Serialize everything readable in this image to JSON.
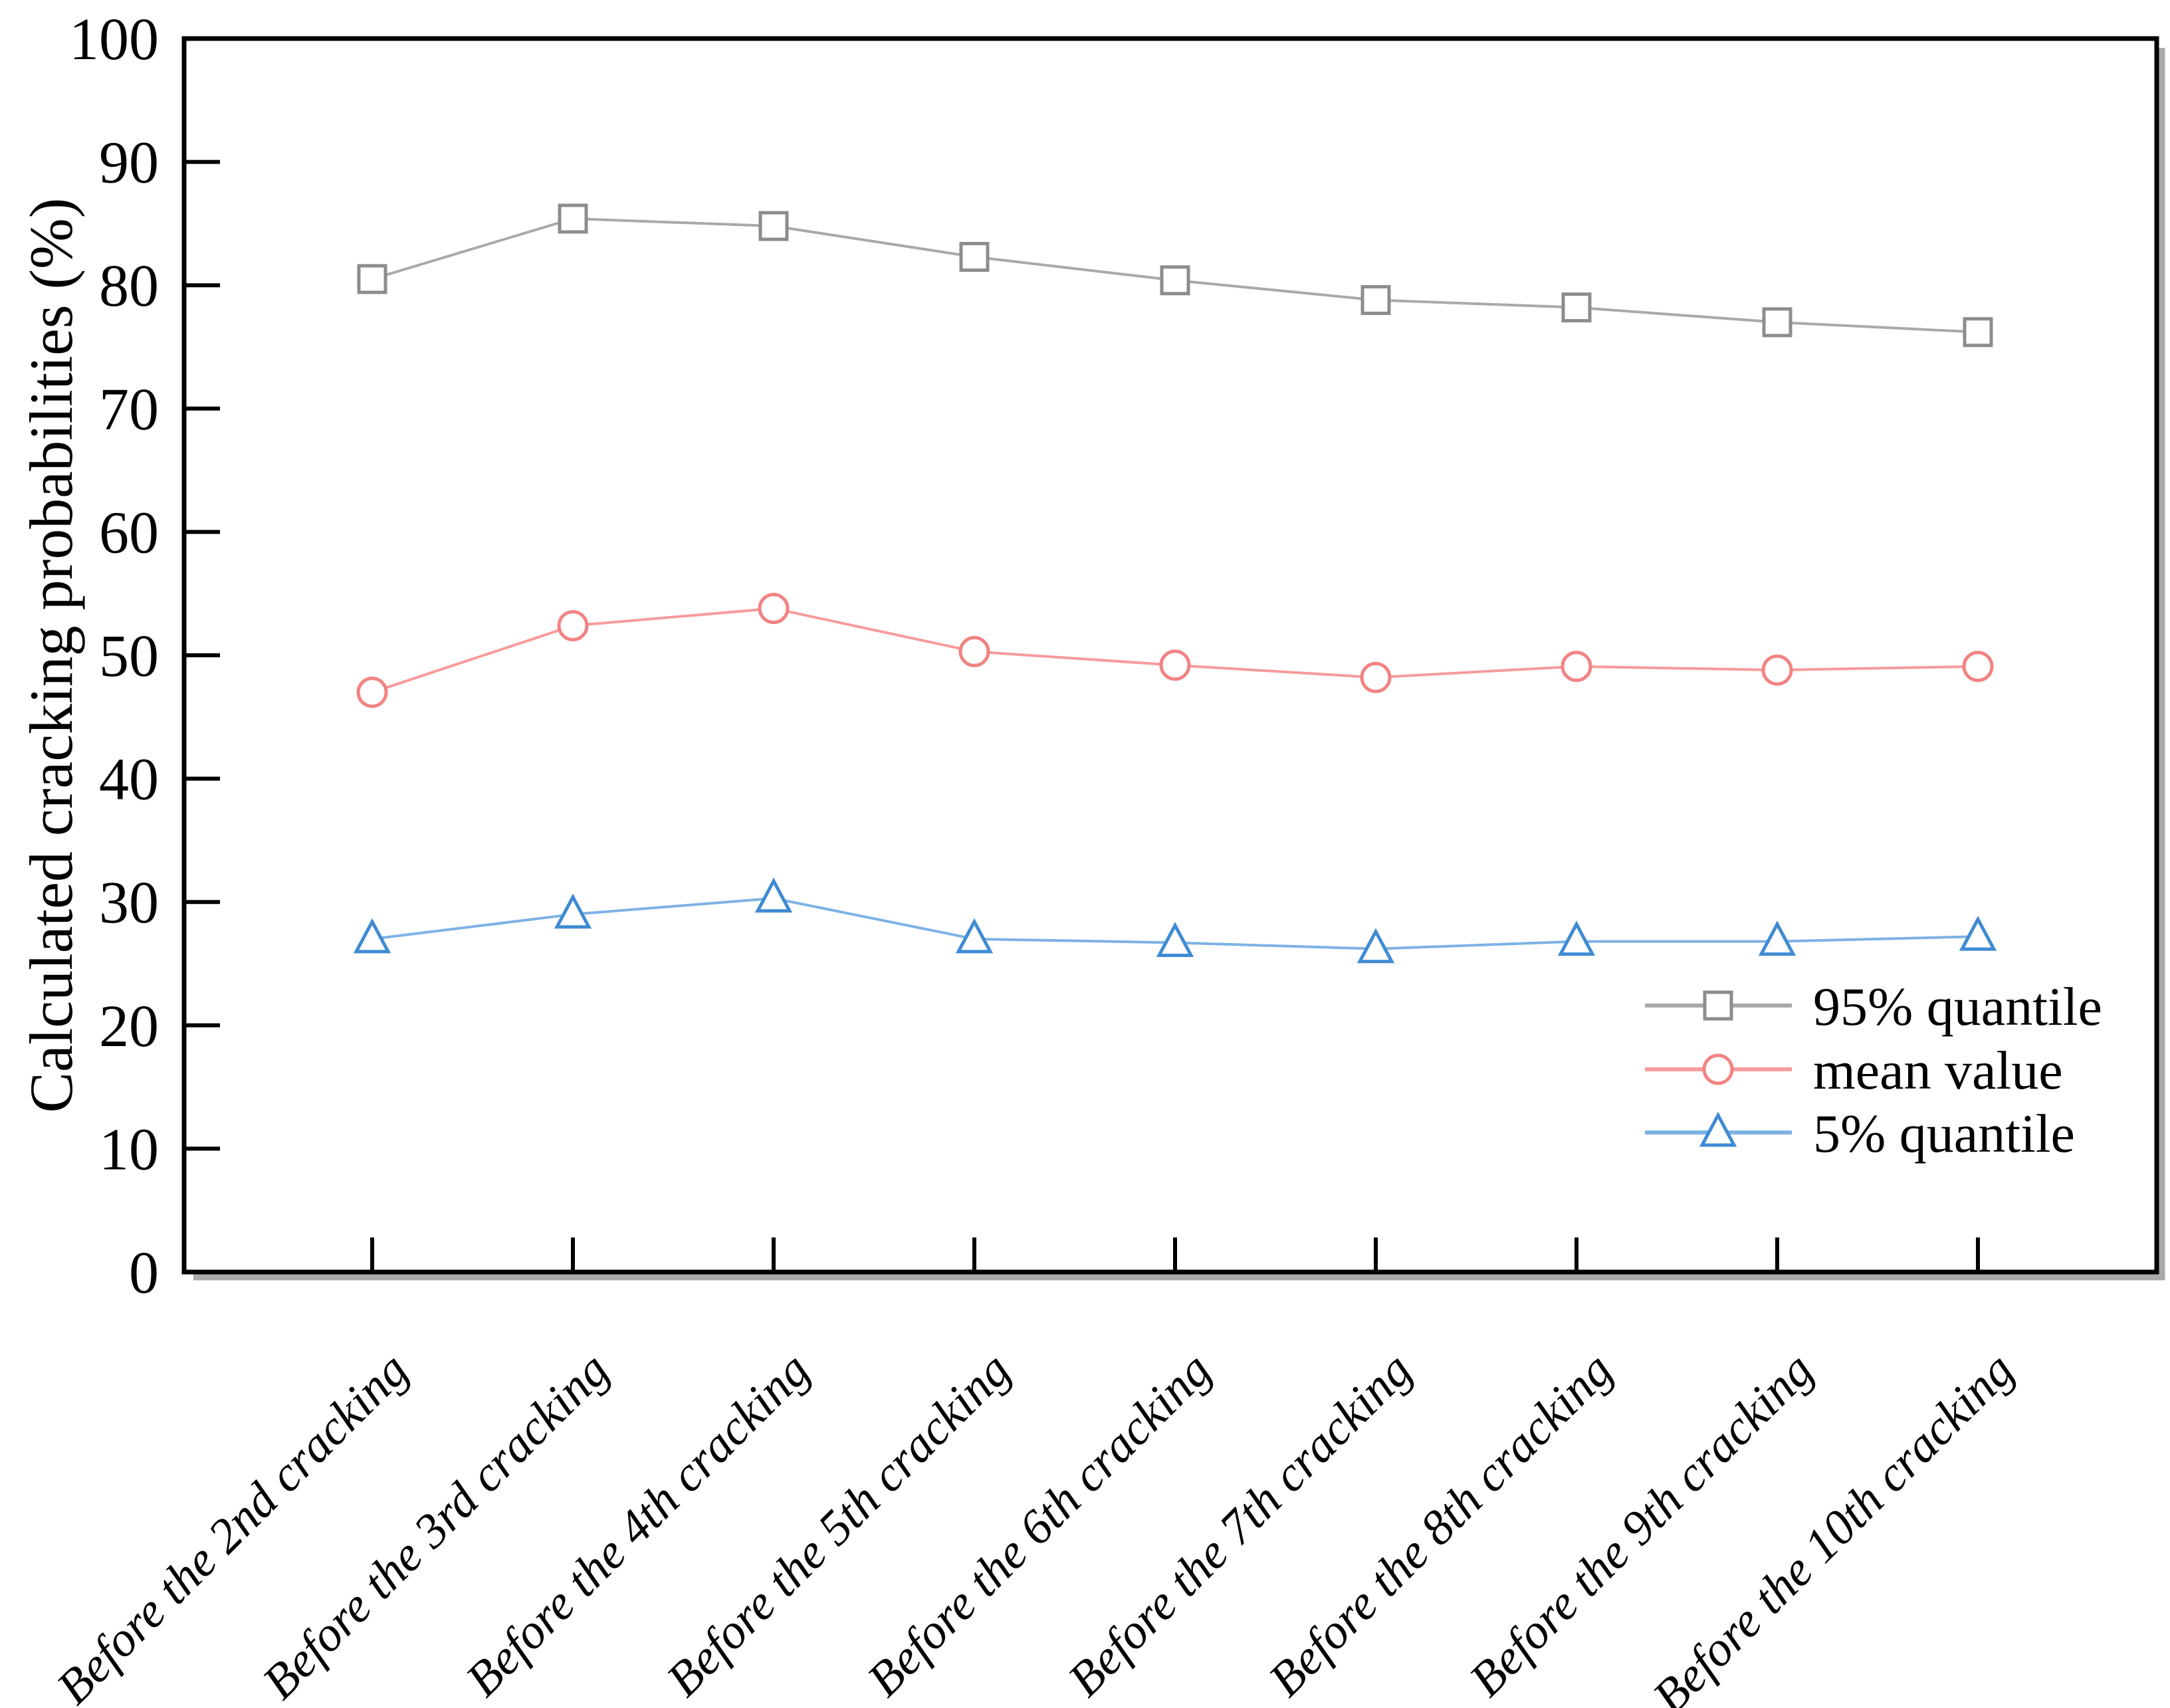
{
  "figure": {
    "kind": "scientific line chart",
    "background": "#ffffff"
  },
  "chart_data": {
    "type": "line",
    "title": "",
    "xlabel": "",
    "ylabel": "Calculated cracking probabilities (%)",
    "ylim": [
      0,
      100
    ],
    "y_ticks": [
      0,
      10,
      20,
      30,
      40,
      50,
      60,
      70,
      80,
      90,
      100
    ],
    "grid": false,
    "legend_position": "lower right",
    "categories": [
      "Before the 2nd cracking",
      "Before the 3rd cracking",
      "Before the 4th cracking",
      "Before the 5th cracking",
      "Before the 6th cracking",
      "Before the 7th cracking",
      "Before the 8th cracking",
      "Before the 9th cracking",
      "Before the 10th cracking"
    ],
    "series": [
      {
        "name": "95% quantile",
        "marker": "square",
        "marker_color": "#8c8c8c",
        "line_color": "#a9a9a9",
        "values": [
          80.5,
          85.4,
          84.8,
          82.3,
          80.4,
          78.8,
          78.2,
          77.0,
          76.2
        ]
      },
      {
        "name": "mean value",
        "marker": "circle",
        "marker_color": "#f28383",
        "line_color": "#f79b9b",
        "values": [
          47.0,
          52.4,
          53.8,
          50.3,
          49.2,
          48.2,
          49.1,
          48.8,
          49.1
        ]
      },
      {
        "name": "5% quantile",
        "marker": "triangle",
        "marker_color": "#3f8bd3",
        "line_color": "#7db2e5",
        "values": [
          27.0,
          29.0,
          30.3,
          27.0,
          26.7,
          26.2,
          26.8,
          26.8,
          27.2
        ]
      }
    ]
  },
  "colors": {
    "axis": "#000000",
    "axis_shadow": "#a9a9a9",
    "text": "#000000",
    "marker_fill": "#ffffff"
  }
}
